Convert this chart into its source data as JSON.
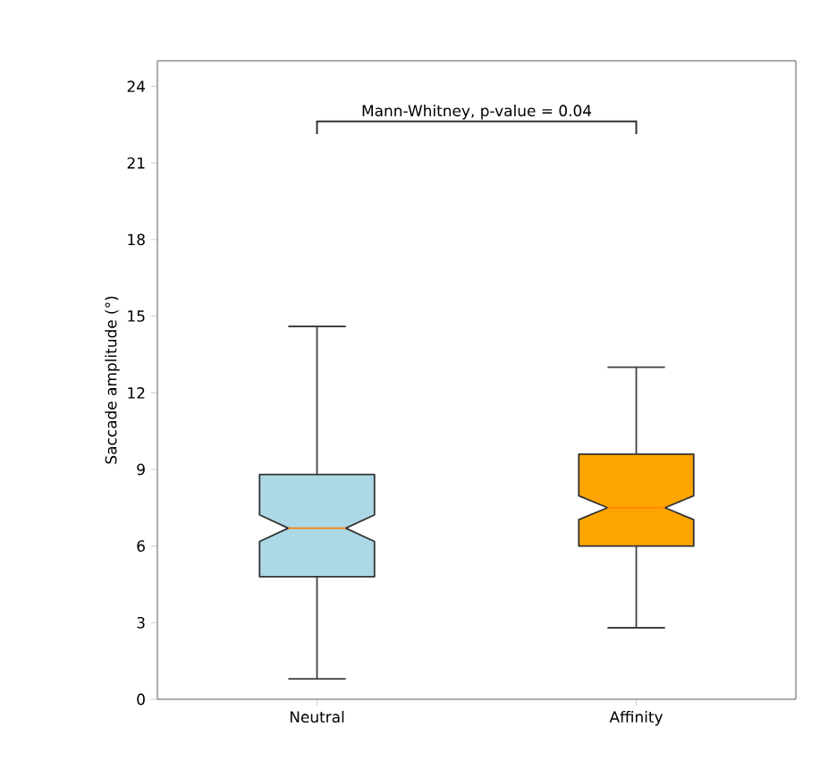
{
  "chart_data": {
    "type": "box",
    "ylabel": "Saccade amplitude (°)",
    "categories": [
      "Neutral",
      "Affinity"
    ],
    "boxes": [
      {
        "low": 0.8,
        "q1": 4.8,
        "median": 6.7,
        "q3": 8.8,
        "high": 14.6
      },
      {
        "low": 2.8,
        "q1": 6.0,
        "median": 7.5,
        "q3": 9.6,
        "high": 13.0
      }
    ],
    "colors": [
      "#add8e6",
      "#ffa500"
    ],
    "ylim": [
      0,
      25
    ],
    "yticks": [
      0,
      3,
      6,
      9,
      12,
      15,
      18,
      21,
      24
    ],
    "annotations": [
      "Mann-Whitney, p-value = 0.04"
    ]
  }
}
